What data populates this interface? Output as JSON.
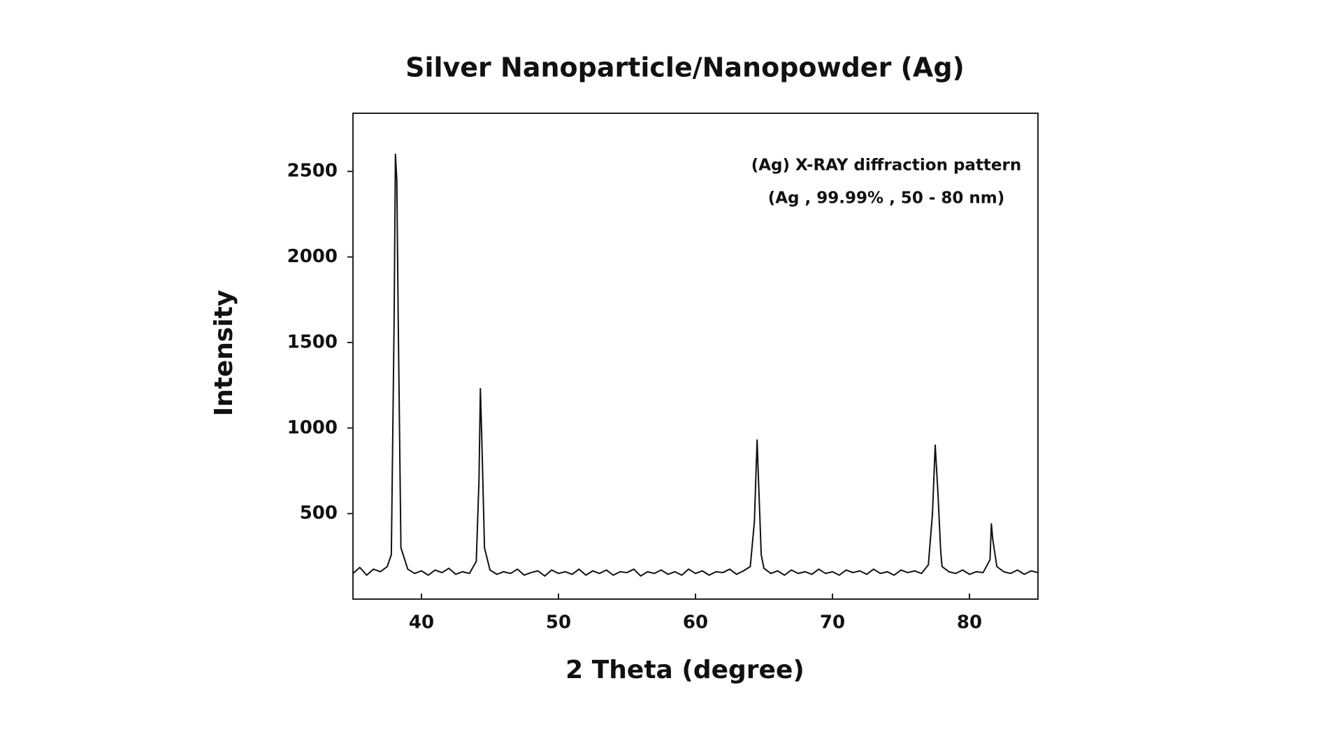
{
  "chart_data": {
    "type": "line",
    "title": "Silver Nanoparticle/Nanopowder (Ag)",
    "x_label": "2 Theta (degree)",
    "y_label": "Intensity",
    "annotations": [
      "(Ag) X-RAY diffraction pattern",
      "(Ag , 99.99% , 50 - 80 nm)"
    ],
    "color": "#111111",
    "xlim": [
      35,
      85
    ],
    "ylim": [
      0,
      2840
    ],
    "xticks": [
      40,
      50,
      60,
      70,
      80
    ],
    "yticks": [
      500,
      1000,
      1500,
      2000,
      2500
    ],
    "x": [
      35,
      35.5,
      36,
      36.5,
      37,
      37.5,
      37.8,
      38.0,
      38.1,
      38.2,
      38.3,
      38.5,
      39,
      39.5,
      40,
      40.5,
      41,
      41.5,
      42,
      42.5,
      43,
      43.5,
      44,
      44.2,
      44.3,
      44.4,
      44.6,
      45,
      45.5,
      46,
      46.5,
      47,
      47.5,
      48,
      48.5,
      49,
      49.5,
      50,
      50.5,
      51,
      51.5,
      52,
      52.5,
      53,
      53.5,
      54,
      54.5,
      55,
      55.5,
      56,
      56.5,
      57,
      57.5,
      58,
      58.5,
      59,
      59.5,
      60,
      60.5,
      61,
      61.5,
      62,
      62.5,
      63,
      63.5,
      64,
      64.3,
      64.5,
      64.6,
      64.8,
      65,
      65.5,
      66,
      66.5,
      67,
      67.5,
      68,
      68.5,
      69,
      69.5,
      70,
      70.5,
      71,
      71.5,
      72,
      72.5,
      73,
      73.5,
      74,
      74.5,
      75,
      75.5,
      76,
      76.5,
      77,
      77.3,
      77.5,
      77.7,
      77.9,
      78,
      78.5,
      79,
      79.5,
      80,
      80.5,
      81,
      81.5,
      81.6,
      81.7,
      82,
      82.5,
      83,
      83.5,
      84,
      84.5,
      85
    ],
    "values": [
      150,
      185,
      140,
      175,
      160,
      190,
      260,
      1600,
      2600,
      2450,
      1650,
      300,
      175,
      150,
      165,
      140,
      170,
      155,
      180,
      145,
      160,
      150,
      220,
      700,
      1230,
      950,
      300,
      170,
      145,
      160,
      150,
      175,
      140,
      155,
      165,
      135,
      170,
      150,
      160,
      145,
      175,
      140,
      165,
      150,
      170,
      140,
      160,
      155,
      175,
      135,
      160,
      150,
      170,
      145,
      160,
      140,
      175,
      150,
      165,
      140,
      160,
      155,
      175,
      145,
      165,
      190,
      450,
      930,
      700,
      260,
      180,
      150,
      165,
      140,
      170,
      150,
      160,
      145,
      175,
      150,
      160,
      140,
      170,
      155,
      165,
      145,
      175,
      150,
      160,
      140,
      170,
      155,
      165,
      150,
      200,
      500,
      900,
      620,
      280,
      190,
      160,
      150,
      170,
      145,
      160,
      155,
      230,
      440,
      350,
      190,
      160,
      150,
      170,
      145,
      165,
      155
    ]
  }
}
